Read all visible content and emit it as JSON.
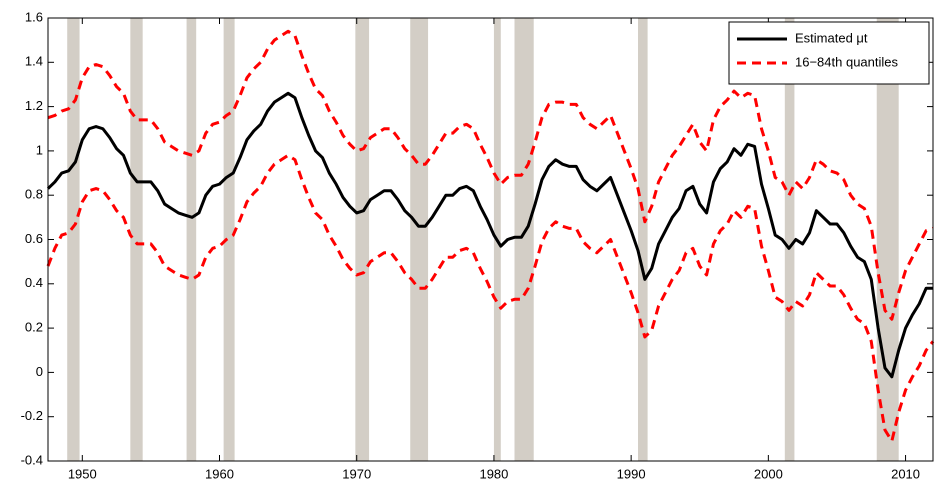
{
  "chart_data": {
    "type": "line",
    "x": [
      1947.5,
      1948,
      1948.5,
      1949,
      1949.5,
      1950,
      1950.5,
      1951,
      1951.5,
      1952,
      1952.5,
      1953,
      1953.5,
      1954,
      1954.5,
      1955,
      1955.5,
      1956,
      1956.5,
      1957,
      1957.5,
      1958,
      1958.5,
      1959,
      1959.5,
      1960,
      1960.5,
      1961,
      1961.5,
      1962,
      1962.5,
      1963,
      1963.5,
      1964,
      1964.5,
      1965,
      1965.5,
      1966,
      1966.5,
      1967,
      1967.5,
      1968,
      1968.5,
      1969,
      1969.5,
      1970,
      1970.5,
      1971,
      1971.5,
      1972,
      1972.5,
      1973,
      1973.5,
      1974,
      1974.5,
      1975,
      1975.5,
      1976,
      1976.5,
      1977,
      1977.5,
      1978,
      1978.5,
      1979,
      1979.5,
      1980,
      1980.5,
      1981,
      1981.5,
      1982,
      1982.5,
      1983,
      1983.5,
      1984,
      1984.5,
      1985,
      1985.5,
      1986,
      1986.5,
      1987,
      1987.5,
      1988,
      1988.5,
      1989,
      1989.5,
      1990,
      1990.5,
      1991,
      1991.5,
      1992,
      1992.5,
      1993,
      1993.5,
      1994,
      1994.5,
      1995,
      1995.5,
      1996,
      1996.5,
      1997,
      1997.5,
      1998,
      1998.5,
      1999,
      1999.5,
      2000,
      2000.5,
      2001,
      2001.5,
      2002,
      2002.5,
      2003,
      2003.5,
      2004,
      2004.5,
      2005,
      2005.5,
      2006,
      2006.5,
      2007,
      2007.5,
      2008,
      2008.5,
      2009,
      2009.5,
      2010,
      2010.5,
      2011,
      2011.5,
      2012
    ],
    "series": [
      {
        "name": "Estimated μt",
        "color": "#000000",
        "style": "solid",
        "values": [
          0.83,
          0.86,
          0.9,
          0.91,
          0.95,
          1.05,
          1.1,
          1.11,
          1.1,
          1.06,
          1.01,
          0.98,
          0.9,
          0.86,
          0.86,
          0.86,
          0.82,
          0.76,
          0.74,
          0.72,
          0.71,
          0.7,
          0.72,
          0.8,
          0.84,
          0.85,
          0.88,
          0.9,
          0.97,
          1.05,
          1.09,
          1.12,
          1.18,
          1.22,
          1.24,
          1.26,
          1.24,
          1.15,
          1.07,
          1.0,
          0.97,
          0.9,
          0.85,
          0.79,
          0.75,
          0.72,
          0.73,
          0.78,
          0.8,
          0.82,
          0.82,
          0.78,
          0.73,
          0.7,
          0.66,
          0.66,
          0.7,
          0.75,
          0.8,
          0.8,
          0.83,
          0.84,
          0.82,
          0.75,
          0.69,
          0.62,
          0.57,
          0.6,
          0.61,
          0.61,
          0.66,
          0.76,
          0.87,
          0.93,
          0.96,
          0.94,
          0.93,
          0.93,
          0.87,
          0.84,
          0.82,
          0.85,
          0.88,
          0.8,
          0.72,
          0.64,
          0.55,
          0.42,
          0.47,
          0.58,
          0.64,
          0.7,
          0.74,
          0.82,
          0.84,
          0.76,
          0.72,
          0.86,
          0.92,
          0.95,
          1.01,
          0.98,
          1.03,
          1.02,
          0.85,
          0.74,
          0.62,
          0.6,
          0.56,
          0.6,
          0.58,
          0.63,
          0.73,
          0.7,
          0.67,
          0.67,
          0.63,
          0.57,
          0.52,
          0.5,
          0.42,
          0.2,
          0.02,
          -0.02,
          0.1,
          0.2,
          0.26,
          0.31,
          0.38,
          0.38
        ]
      },
      {
        "name": "16−84th quantiles",
        "color": "#ff0000",
        "style": "dashed",
        "values": [
          1.15,
          1.16,
          1.18,
          1.19,
          1.23,
          1.33,
          1.38,
          1.39,
          1.38,
          1.34,
          1.29,
          1.26,
          1.18,
          1.14,
          1.14,
          1.14,
          1.1,
          1.04,
          1.02,
          1.0,
          0.99,
          0.98,
          1.0,
          1.08,
          1.12,
          1.13,
          1.16,
          1.18,
          1.25,
          1.33,
          1.37,
          1.4,
          1.46,
          1.5,
          1.52,
          1.54,
          1.52,
          1.43,
          1.35,
          1.28,
          1.25,
          1.18,
          1.13,
          1.07,
          1.03,
          1.0,
          1.01,
          1.06,
          1.08,
          1.1,
          1.1,
          1.06,
          1.01,
          0.98,
          0.94,
          0.94,
          0.98,
          1.03,
          1.08,
          1.08,
          1.11,
          1.12,
          1.1,
          1.03,
          0.97,
          0.9,
          0.85,
          0.88,
          0.89,
          0.89,
          0.94,
          1.04,
          1.15,
          1.21,
          1.22,
          1.22,
          1.21,
          1.21,
          1.15,
          1.12,
          1.1,
          1.13,
          1.16,
          1.08,
          1.0,
          0.92,
          0.83,
          0.68,
          0.75,
          0.86,
          0.92,
          0.98,
          1.02,
          1.07,
          1.12,
          1.04,
          1.0,
          1.14,
          1.2,
          1.23,
          1.27,
          1.24,
          1.26,
          1.25,
          1.1,
          1.0,
          0.88,
          0.86,
          0.8,
          0.86,
          0.83,
          0.88,
          0.96,
          0.94,
          0.91,
          0.9,
          0.87,
          0.8,
          0.76,
          0.74,
          0.66,
          0.45,
          0.28,
          0.24,
          0.36,
          0.46,
          0.52,
          0.58,
          0.64,
          0.65
        ]
      },
      {
        "color": "#ff0000",
        "style": "dashed",
        "values": [
          0.48,
          0.56,
          0.62,
          0.63,
          0.67,
          0.77,
          0.82,
          0.83,
          0.82,
          0.78,
          0.73,
          0.7,
          0.62,
          0.58,
          0.58,
          0.58,
          0.54,
          0.48,
          0.46,
          0.44,
          0.43,
          0.42,
          0.44,
          0.52,
          0.56,
          0.57,
          0.6,
          0.62,
          0.69,
          0.77,
          0.81,
          0.84,
          0.9,
          0.94,
          0.96,
          0.98,
          0.96,
          0.87,
          0.79,
          0.72,
          0.69,
          0.62,
          0.57,
          0.51,
          0.47,
          0.44,
          0.45,
          0.5,
          0.52,
          0.54,
          0.54,
          0.5,
          0.45,
          0.42,
          0.38,
          0.38,
          0.42,
          0.47,
          0.52,
          0.52,
          0.55,
          0.56,
          0.54,
          0.47,
          0.41,
          0.34,
          0.29,
          0.32,
          0.33,
          0.33,
          0.38,
          0.48,
          0.59,
          0.65,
          0.68,
          0.66,
          0.65,
          0.65,
          0.59,
          0.56,
          0.54,
          0.57,
          0.6,
          0.52,
          0.44,
          0.36,
          0.27,
          0.16,
          0.19,
          0.3,
          0.36,
          0.42,
          0.46,
          0.54,
          0.56,
          0.48,
          0.44,
          0.58,
          0.64,
          0.67,
          0.73,
          0.7,
          0.75,
          0.74,
          0.57,
          0.46,
          0.34,
          0.32,
          0.28,
          0.32,
          0.3,
          0.35,
          0.45,
          0.42,
          0.39,
          0.39,
          0.35,
          0.29,
          0.24,
          0.22,
          0.14,
          -0.08,
          -0.26,
          -0.31,
          -0.18,
          -0.08,
          -0.02,
          0.03,
          0.1,
          0.14
        ]
      }
    ],
    "shaded_periods": [
      [
        1948.9,
        1949.8
      ],
      [
        1953.5,
        1954.4
      ],
      [
        1957.6,
        1958.3
      ],
      [
        1960.3,
        1961.1
      ],
      [
        1969.9,
        1970.9
      ],
      [
        1973.9,
        1975.2
      ],
      [
        1980.0,
        1980.5
      ],
      [
        1981.5,
        1982.9
      ],
      [
        1990.5,
        1991.2
      ],
      [
        2001.2,
        2001.9
      ],
      [
        2007.9,
        2009.5
      ]
    ],
    "shade_color": "#d3cec6",
    "xlim": [
      1947.5,
      2012
    ],
    "xticks": [
      1950,
      1960,
      1970,
      1980,
      1990,
      2000,
      2010
    ],
    "ylim": [
      -0.4,
      1.6
    ],
    "yticks": [
      -0.4,
      -0.2,
      0,
      0.2,
      0.4,
      0.6,
      0.8,
      1,
      1.2,
      1.4,
      1.6
    ],
    "legend": "upper right"
  }
}
